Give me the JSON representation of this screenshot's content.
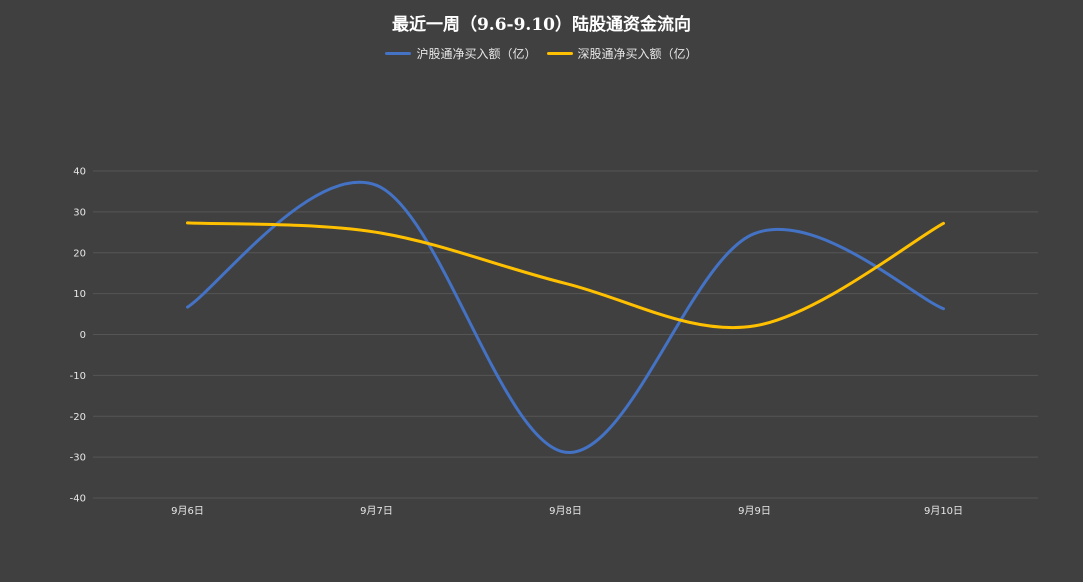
{
  "chart_data": {
    "type": "line",
    "title": "最近一周（9.6-9.10）陆股通资金流向",
    "categories": [
      "9月6日",
      "9月7日",
      "9月8日",
      "9月9日",
      "9月10日"
    ],
    "series": [
      {
        "name": "沪股通净买入额（亿）",
        "color": "#4472c4",
        "values": [
          6.7,
          36.5,
          -28.8,
          24.7,
          6.3
        ]
      },
      {
        "name": "深股通净买入额（亿）",
        "color": "#ffc000",
        "values": [
          27.3,
          25.0,
          12.5,
          2.1,
          27.2
        ]
      }
    ],
    "ylim": [
      -40,
      40
    ],
    "yticks": [
      "40",
      "30",
      "20",
      "10",
      "0",
      "-10",
      "-20",
      "-30",
      "-40"
    ],
    "ytick_values": [
      40,
      30,
      20,
      10,
      0,
      -10,
      -20,
      -30,
      -40
    ],
    "grid": true,
    "legend_position": "top"
  }
}
